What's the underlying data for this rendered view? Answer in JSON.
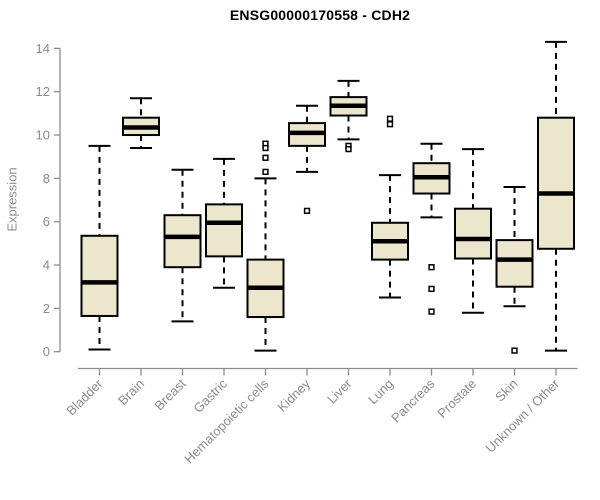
{
  "title": "ENSG00000170558 - CDH2",
  "y_axis_label": "Expression",
  "colors": {
    "box_fill": "#ECE7CC",
    "box_border": "#000000",
    "median": "#000000",
    "whisker": "#000000",
    "axis": "#8C8C8C",
    "tick_label": "#8C8C8C",
    "title": "#000000",
    "background": "#FFFFFF"
  },
  "chart_data": {
    "type": "boxplot",
    "title": "ENSG00000170558 - CDH2",
    "xlabel": "",
    "ylabel": "Expression",
    "ylim": [
      0,
      14
    ],
    "yticks": [
      0,
      2,
      4,
      6,
      8,
      10,
      12,
      14
    ],
    "grid": false,
    "legend": false,
    "categories": [
      "Bladder",
      "Brain",
      "Breast",
      "Gastric",
      "Hematopoietic cells",
      "Kidney",
      "Liver",
      "Lung",
      "Pancreas",
      "Prostate",
      "Skin",
      "Unknown / Other"
    ],
    "series": [
      {
        "name": "Bladder",
        "whisker_low": 0.1,
        "q1": 1.65,
        "median": 3.2,
        "q3": 5.35,
        "whisker_high": 9.5,
        "outliers": []
      },
      {
        "name": "Brain",
        "whisker_low": 9.4,
        "q1": 10.0,
        "median": 10.35,
        "q3": 10.8,
        "whisker_high": 11.7,
        "outliers": []
      },
      {
        "name": "Breast",
        "whisker_low": 1.4,
        "q1": 3.9,
        "median": 5.3,
        "q3": 6.3,
        "whisker_high": 8.4,
        "outliers": []
      },
      {
        "name": "Gastric",
        "whisker_low": 2.95,
        "q1": 4.4,
        "median": 5.95,
        "q3": 6.8,
        "whisker_high": 8.9,
        "outliers": []
      },
      {
        "name": "Hematopoietic cells",
        "whisker_low": 0.05,
        "q1": 1.6,
        "median": 2.95,
        "q3": 4.25,
        "whisker_high": 8.0,
        "outliers": [
          9.6,
          9.4,
          8.95,
          8.3
        ]
      },
      {
        "name": "Kidney",
        "whisker_low": 8.3,
        "q1": 9.5,
        "median": 10.1,
        "q3": 10.55,
        "whisker_high": 11.35,
        "outliers": [
          6.5
        ]
      },
      {
        "name": "Liver",
        "whisker_low": 9.8,
        "q1": 10.9,
        "median": 11.35,
        "q3": 11.75,
        "whisker_high": 12.5,
        "outliers": [
          9.5,
          9.35
        ]
      },
      {
        "name": "Lung",
        "whisker_low": 2.5,
        "q1": 4.25,
        "median": 5.1,
        "q3": 5.95,
        "whisker_high": 8.15,
        "outliers": [
          10.75,
          10.5
        ]
      },
      {
        "name": "Pancreas",
        "whisker_low": 6.2,
        "q1": 7.3,
        "median": 8.05,
        "q3": 8.7,
        "whisker_high": 9.6,
        "outliers": [
          3.9,
          2.9,
          1.85
        ]
      },
      {
        "name": "Prostate",
        "whisker_low": 1.8,
        "q1": 4.3,
        "median": 5.2,
        "q3": 6.6,
        "whisker_high": 9.35,
        "outliers": []
      },
      {
        "name": "Skin",
        "whisker_low": 2.1,
        "q1": 3.0,
        "median": 4.25,
        "q3": 5.15,
        "whisker_high": 7.6,
        "outliers": [
          0.05
        ]
      },
      {
        "name": "Unknown / Other",
        "whisker_low": 0.05,
        "q1": 4.75,
        "median": 7.3,
        "q3": 10.8,
        "whisker_high": 14.3,
        "outliers": []
      }
    ]
  }
}
